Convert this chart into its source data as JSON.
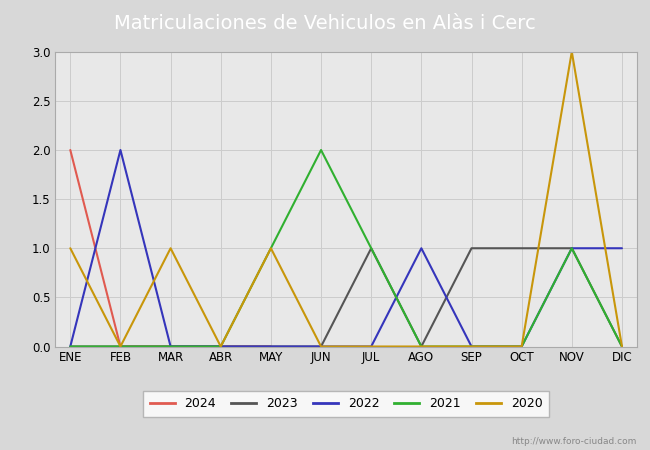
{
  "title": "Matriculaciones de Vehiculos en Alàs i Cerc",
  "title_bg_color": "#4a8fd4",
  "title_text_color": "white",
  "months": [
    "ENE",
    "FEB",
    "MAR",
    "ABR",
    "MAY",
    "JUN",
    "JUL",
    "AGO",
    "SEP",
    "OCT",
    "NOV",
    "DIC"
  ],
  "series": {
    "2024": {
      "color": "#e05a50",
      "values": [
        2,
        0,
        0,
        0,
        0,
        null,
        null,
        null,
        null,
        null,
        null,
        null
      ]
    },
    "2023": {
      "color": "#555555",
      "values": [
        0,
        0,
        0,
        0,
        0,
        0,
        1,
        0,
        1,
        1,
        1,
        0
      ]
    },
    "2022": {
      "color": "#3535bb",
      "values": [
        0,
        2,
        0,
        0,
        0,
        0,
        0,
        1,
        0,
        0,
        1,
        1
      ]
    },
    "2021": {
      "color": "#30b030",
      "values": [
        0,
        0,
        0,
        0,
        1,
        2,
        1,
        0,
        0,
        0,
        1,
        0
      ]
    },
    "2020": {
      "color": "#c8960a",
      "values": [
        1,
        0,
        1,
        0,
        1,
        0,
        0,
        0,
        0,
        0,
        3,
        0
      ]
    }
  },
  "ylim": [
    0.0,
    3.0
  ],
  "yticks": [
    0.0,
    0.5,
    1.0,
    1.5,
    2.0,
    2.5,
    3.0
  ],
  "grid_color": "#cccccc",
  "outer_bg_color": "#d8d8d8",
  "plot_bg_color": "#e8e8e8",
  "watermark": "http://www.foro-ciudad.com",
  "legend_order": [
    "2024",
    "2023",
    "2022",
    "2021",
    "2020"
  ],
  "title_fontsize": 14,
  "tick_fontsize": 8.5,
  "legend_fontsize": 9
}
